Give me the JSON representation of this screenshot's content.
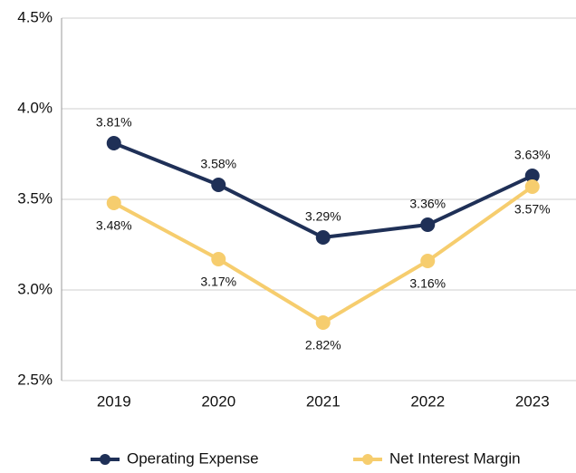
{
  "chart_data": {
    "type": "line",
    "categories": [
      "2019",
      "2020",
      "2021",
      "2022",
      "2023"
    ],
    "series": [
      {
        "name": "Operating Expense",
        "color": "#1f3057",
        "values": [
          3.81,
          3.58,
          3.29,
          3.36,
          3.63
        ],
        "value_labels": [
          "3.81%",
          "3.58%",
          "3.29%",
          "3.36%",
          "3.63%"
        ]
      },
      {
        "name": "Net Interest Margin",
        "color": "#f6cd6e",
        "values": [
          3.48,
          3.17,
          2.82,
          3.16,
          3.57
        ],
        "value_labels": [
          "3.48%",
          "3.17%",
          "2.82%",
          "3.16%",
          "3.57%"
        ]
      }
    ],
    "ylim": [
      2.5,
      4.5
    ],
    "yticks": [
      {
        "value": 2.5,
        "label": "2.5%"
      },
      {
        "value": 3.0,
        "label": "3.0%"
      },
      {
        "value": 3.5,
        "label": "3.5%"
      },
      {
        "value": 4.0,
        "label": "4.0%"
      },
      {
        "value": 4.5,
        "label": "4.5%"
      }
    ],
    "grid": true,
    "legend": "bottom"
  }
}
